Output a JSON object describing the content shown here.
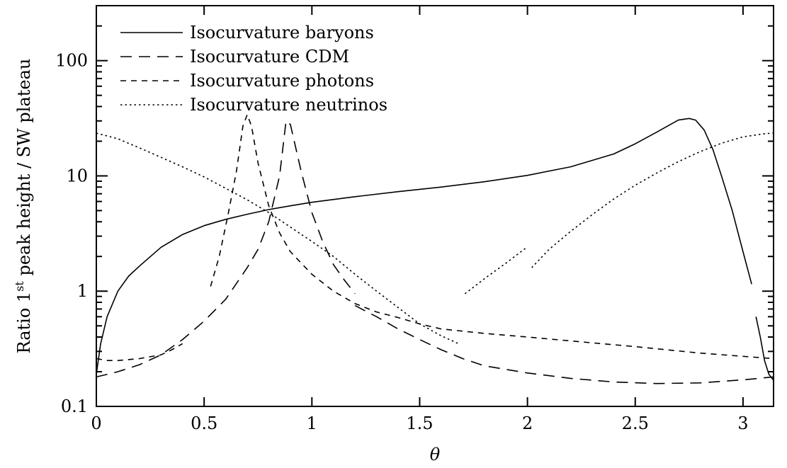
{
  "chart_data": {
    "type": "line",
    "xlabel": "θ",
    "ylabel": {
      "pre": "Ratio 1",
      "sup": "st",
      "post": " peak height / SW plateau"
    },
    "xlim": [
      0,
      3.14159
    ],
    "ylim": [
      0.1,
      300
    ],
    "yscale": "log",
    "grid": false,
    "legend_position": "top-left",
    "x_ticks": [
      {
        "v": 0,
        "label": "0"
      },
      {
        "v": 0.5,
        "label": "0.5"
      },
      {
        "v": 1,
        "label": "1"
      },
      {
        "v": 1.5,
        "label": "1.5"
      },
      {
        "v": 2,
        "label": "2"
      },
      {
        "v": 2.5,
        "label": "2.5"
      },
      {
        "v": 3,
        "label": "3"
      }
    ],
    "y_ticks": [
      {
        "v": 0.1,
        "label": "0.1"
      },
      {
        "v": 1,
        "label": "1"
      },
      {
        "v": 10,
        "label": "10"
      },
      {
        "v": 100,
        "label": "100"
      }
    ],
    "series": [
      {
        "name": "Isocurvature baryons",
        "style": "solid",
        "segments": [
          [
            [
              0.0,
              0.19
            ],
            [
              0.02,
              0.35
            ],
            [
              0.05,
              0.6
            ],
            [
              0.1,
              1.0
            ],
            [
              0.15,
              1.35
            ],
            [
              0.2,
              1.65
            ],
            [
              0.3,
              2.4
            ],
            [
              0.4,
              3.1
            ],
            [
              0.5,
              3.7
            ],
            [
              0.6,
              4.2
            ],
            [
              0.7,
              4.65
            ],
            [
              0.8,
              5.1
            ],
            [
              0.9,
              5.5
            ],
            [
              1.0,
              5.9
            ],
            [
              1.2,
              6.6
            ],
            [
              1.4,
              7.3
            ],
            [
              1.6,
              8.0
            ],
            [
              1.8,
              8.9
            ],
            [
              2.0,
              10.1
            ],
            [
              2.2,
              12.0
            ],
            [
              2.4,
              15.5
            ],
            [
              2.5,
              19.0
            ],
            [
              2.6,
              24.0
            ],
            [
              2.7,
              30.5
            ],
            [
              2.75,
              31.5
            ],
            [
              2.78,
              30.5
            ],
            [
              2.82,
              25.0
            ],
            [
              2.86,
              17.0
            ],
            [
              2.9,
              10.0
            ],
            [
              2.95,
              5.0
            ],
            [
              3.0,
              2.2
            ],
            [
              3.04,
              1.15
            ]
          ],
          [
            [
              3.06,
              0.6
            ],
            [
              3.08,
              0.4
            ],
            [
              3.1,
              0.25
            ],
            [
              3.12,
              0.19
            ],
            [
              3.14,
              0.17
            ]
          ]
        ]
      },
      {
        "name": "Isocurvature CDM",
        "style": "dashed",
        "segments": [
          [
            [
              0.0,
              0.18
            ],
            [
              0.1,
              0.2
            ],
            [
              0.2,
              0.23
            ],
            [
              0.3,
              0.28
            ],
            [
              0.4,
              0.38
            ],
            [
              0.5,
              0.55
            ],
            [
              0.6,
              0.85
            ],
            [
              0.7,
              1.6
            ],
            [
              0.75,
              2.3
            ],
            [
              0.8,
              4.0
            ],
            [
              0.85,
              10.0
            ],
            [
              0.88,
              30.0
            ],
            [
              0.9,
              28.0
            ],
            [
              0.95,
              11.0
            ],
            [
              1.0,
              4.8
            ],
            [
              1.05,
              2.7
            ],
            [
              1.1,
              1.7
            ],
            [
              1.15,
              1.25
            ],
            [
              1.2,
              0.95
            ]
          ],
          [
            [
              1.2,
              0.75
            ],
            [
              1.3,
              0.6
            ],
            [
              1.4,
              0.47
            ],
            [
              1.5,
              0.38
            ],
            [
              1.6,
              0.31
            ],
            [
              1.7,
              0.26
            ],
            [
              1.8,
              0.225
            ],
            [
              2.0,
              0.195
            ],
            [
              2.2,
              0.175
            ],
            [
              2.4,
              0.163
            ],
            [
              2.6,
              0.158
            ],
            [
              2.8,
              0.16
            ],
            [
              3.0,
              0.17
            ],
            [
              3.14,
              0.18
            ]
          ]
        ]
      },
      {
        "name": "Isocurvature photons",
        "style": "dashed-short",
        "segments": [
          [
            [
              0.0,
              0.26
            ],
            [
              0.05,
              0.25
            ],
            [
              0.1,
              0.25
            ],
            [
              0.2,
              0.26
            ],
            [
              0.3,
              0.28
            ],
            [
              0.35,
              0.31
            ],
            [
              0.4,
              0.35
            ]
          ],
          [
            [
              0.53,
              1.1
            ],
            [
              0.57,
              2.0
            ],
            [
              0.61,
              4.5
            ],
            [
              0.65,
              11.0
            ],
            [
              0.68,
              27.0
            ],
            [
              0.7,
              34.0
            ],
            [
              0.72,
              27.0
            ],
            [
              0.75,
              13.0
            ],
            [
              0.8,
              5.5
            ],
            [
              0.85,
              3.2
            ],
            [
              0.9,
              2.2
            ],
            [
              1.0,
              1.4
            ],
            [
              1.1,
              1.0
            ],
            [
              1.2,
              0.78
            ],
            [
              1.3,
              0.66
            ],
            [
              1.4,
              0.59
            ],
            [
              1.5,
              0.52
            ],
            [
              1.6,
              0.47
            ],
            [
              1.8,
              0.43
            ],
            [
              2.0,
              0.4
            ],
            [
              2.2,
              0.37
            ],
            [
              2.5,
              0.33
            ],
            [
              2.8,
              0.29
            ],
            [
              3.14,
              0.26
            ]
          ]
        ]
      },
      {
        "name": "Isocurvature neutrinos",
        "style": "dotted",
        "segments": [
          [
            [
              0.0,
              23.5
            ],
            [
              0.1,
              21.0
            ],
            [
              0.2,
              17.5
            ],
            [
              0.3,
              14.5
            ],
            [
              0.4,
              12.0
            ],
            [
              0.5,
              9.8
            ],
            [
              0.6,
              7.8
            ],
            [
              0.7,
              6.2
            ],
            [
              0.8,
              4.8
            ],
            [
              0.9,
              3.6
            ],
            [
              1.0,
              2.7
            ],
            [
              1.1,
              2.0
            ],
            [
              1.2,
              1.4
            ],
            [
              1.3,
              1.0
            ],
            [
              1.4,
              0.72
            ],
            [
              1.5,
              0.52
            ],
            [
              1.6,
              0.41
            ],
            [
              1.68,
              0.35
            ]
          ],
          [
            [
              1.71,
              0.95
            ],
            [
              1.8,
              1.28
            ],
            [
              1.9,
              1.75
            ],
            [
              1.99,
              2.35
            ]
          ],
          [
            [
              2.02,
              1.6
            ],
            [
              2.1,
              2.3
            ],
            [
              2.2,
              3.3
            ],
            [
              2.3,
              4.6
            ],
            [
              2.4,
              6.3
            ],
            [
              2.5,
              8.3
            ],
            [
              2.6,
              10.6
            ],
            [
              2.7,
              13.3
            ],
            [
              2.8,
              16.2
            ],
            [
              2.9,
              19.2
            ],
            [
              3.0,
              21.8
            ],
            [
              3.1,
              23.2
            ],
            [
              3.14,
              23.5
            ]
          ]
        ]
      }
    ]
  }
}
